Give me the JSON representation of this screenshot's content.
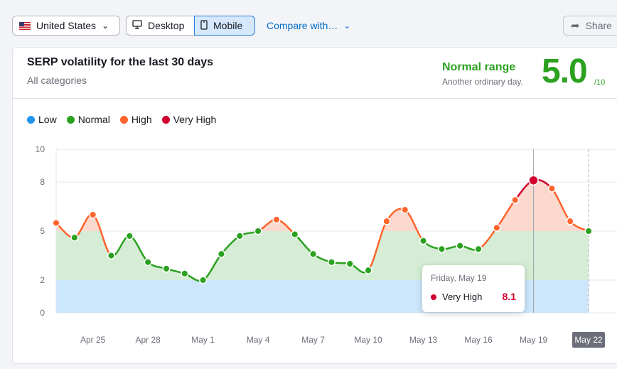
{
  "toolbar": {
    "country": "United States",
    "desktop_label": "Desktop",
    "mobile_label": "Mobile",
    "compare_label": "Compare with…",
    "share_label": "Share"
  },
  "card": {
    "title": "SERP volatility for the last 30 days",
    "subtitle": "All categories",
    "range_label": "Normal range",
    "range_note": "Another ordinary day.",
    "score": "5.0",
    "score_max": "/10"
  },
  "legend": [
    {
      "label": "Low",
      "color": "#2194ec"
    },
    {
      "label": "Normal",
      "color": "#2ba120"
    },
    {
      "label": "High",
      "color": "#ff642d"
    },
    {
      "label": "Very High",
      "color": "#d1002f"
    }
  ],
  "tooltip": {
    "date": "Friday, May 19",
    "label": "Very High",
    "value": "8.1"
  },
  "chart_data": {
    "type": "line",
    "x": [
      "Apr 23",
      "Apr 24",
      "Apr 25",
      "Apr 26",
      "Apr 27",
      "Apr 28",
      "Apr 29",
      "Apr 30",
      "May 1",
      "May 2",
      "May 3",
      "May 4",
      "May 5",
      "May 6",
      "May 7",
      "May 8",
      "May 9",
      "May 10",
      "May 11",
      "May 12",
      "May 13",
      "May 14",
      "May 15",
      "May 16",
      "May 17",
      "May 18",
      "May 19",
      "May 20",
      "May 21",
      "May 22"
    ],
    "series": [
      {
        "values": [
          5.5,
          4.6,
          6.0,
          3.5,
          4.7,
          3.1,
          2.7,
          2.4,
          2.0,
          3.6,
          4.7,
          5.0,
          5.7,
          4.8,
          3.6,
          3.1,
          3.0,
          2.6,
          5.6,
          6.3,
          4.4,
          3.9,
          4.1,
          3.9,
          5.2,
          6.9,
          8.1,
          7.6,
          5.6,
          5.0
        ]
      }
    ],
    "ylim": [
      0,
      10
    ],
    "yticks": [
      0,
      2,
      5,
      8,
      10
    ],
    "xtick_labels": [
      "Apr 25",
      "Apr 28",
      "May 1",
      "May 4",
      "May 7",
      "May 10",
      "May 13",
      "May 16",
      "May 19",
      "May 22"
    ],
    "bands": [
      {
        "name": "Low",
        "from": 0,
        "to": 2,
        "color": "#cce6fb"
      },
      {
        "name": "Normal",
        "from": 2,
        "to": 5,
        "color": "#d5edd4"
      },
      {
        "name": "High",
        "from": 5,
        "to": 10,
        "color": "#fcd9cf"
      }
    ],
    "highlighted_point": "May 19",
    "highlighted_label": "May 22",
    "grid": true,
    "legend_position": "top-left"
  }
}
